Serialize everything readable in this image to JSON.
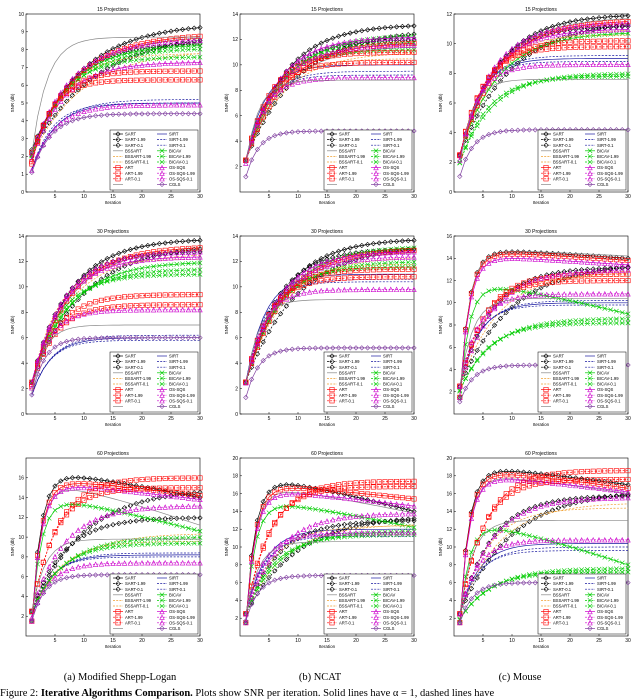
{
  "column_labels": [
    "(a) Modified Shepp-Logan",
    "(b) NCAT",
    "(c) Mouse"
  ],
  "caption": {
    "prefix": "Figure 2:",
    "bold": "Iterative Algorithms Comparison.",
    "rest": "Plots show SNR per iteration. Solid lines have α = 1, dashed lines have"
  },
  "legend_entries": [
    "SART",
    "SIRT",
    "SART-1.99",
    "SIRT-1.99",
    "SART-0.1",
    "SIRT-0.1",
    "BSSART",
    "BICAV",
    "BSSART-1.99",
    "BICAV-1.99",
    "BSSART-0.1",
    "BICAV-0.1",
    "ART",
    "OS-SQS",
    "ART-1.99",
    "OS-SQS-1.99",
    "ART-0.1",
    "OS-SQS-0.1",
    "",
    "CGLS"
  ],
  "series_styles": [
    {
      "color": "#000000",
      "marker": "diamond",
      "dash": false
    },
    {
      "color": "#1a1aa0",
      "marker": "none",
      "dash": false
    },
    {
      "color": "#000000",
      "marker": "diamond",
      "dash": true
    },
    {
      "color": "#1a1aa0",
      "marker": "none",
      "dash": true
    },
    {
      "color": "#000000",
      "marker": "diamond",
      "dash": true
    },
    {
      "color": "#1a1aa0",
      "marker": "none",
      "dash": true
    },
    {
      "color": "#888888",
      "marker": "none",
      "dash": false
    },
    {
      "color": "#00cc00",
      "marker": "x",
      "dash": false
    },
    {
      "color": "#f0a030",
      "marker": "none",
      "dash": true
    },
    {
      "color": "#00cc00",
      "marker": "x",
      "dash": true
    },
    {
      "color": "#f0a030",
      "marker": "none",
      "dash": true
    },
    {
      "color": "#00cc00",
      "marker": "x",
      "dash": true
    },
    {
      "color": "#ff0000",
      "marker": "square",
      "dash": false
    },
    {
      "color": "#cc00cc",
      "marker": "triangle",
      "dash": false
    },
    {
      "color": "#ff0000",
      "marker": "square",
      "dash": true
    },
    {
      "color": "#cc00cc",
      "marker": "triangle",
      "dash": true
    },
    {
      "color": "#ff0000",
      "marker": "square",
      "dash": true
    },
    {
      "color": "#cc00cc",
      "marker": "triangle",
      "dash": true
    },
    {
      "color": "#888888",
      "marker": "none",
      "dash": false
    },
    {
      "color": "#8040a0",
      "marker": "diamond",
      "dash": false
    }
  ],
  "chart_data": [
    {
      "type": "line",
      "title": "15 Projections",
      "xlabel": "Iteration",
      "ylabel": "SNR (db)",
      "xlim": [
        0,
        30
      ],
      "ylim": [
        0,
        10
      ],
      "xticks": [
        5,
        10,
        15,
        20,
        25,
        30
      ],
      "yticks": [
        0,
        1,
        2,
        3,
        4,
        5,
        6,
        7,
        8,
        9,
        10
      ],
      "finals": [
        9.5,
        5.0,
        9.0,
        5.2,
        8.4,
        5.0,
        8.8,
        8.3,
        8.0,
        8.1,
        7.8,
        7.6,
        8.9,
        7.3,
        6.8,
        8.6,
        6.3,
        4.9,
        8.7,
        4.4
      ],
      "peaks": [
        0,
        0,
        0,
        0,
        0,
        0,
        0,
        0,
        0,
        0,
        0,
        0,
        0,
        0,
        0,
        0,
        0,
        0,
        0,
        0
      ],
      "rates": [
        4,
        1.8,
        5,
        2,
        3,
        1.6,
        3.5,
        3,
        4,
        3,
        2.5,
        2.4,
        3.5,
        2.5,
        1.8,
        3,
        1.5,
        1.8,
        1.2,
        1.5
      ]
    },
    {
      "type": "line",
      "title": "15 Projections",
      "xlabel": "Iteration",
      "ylabel": "SNR (db)",
      "xlim": [
        0,
        30
      ],
      "ylim": [
        0,
        14
      ],
      "xticks": [
        5,
        10,
        15,
        20,
        25,
        30
      ],
      "yticks": [
        2,
        4,
        6,
        8,
        10,
        12,
        14
      ],
      "finals": [
        13.2,
        10.0,
        12.8,
        9.5,
        12.0,
        9.2,
        11.5,
        12.4,
        11.0,
        11.8,
        10.5,
        11.2,
        11.8,
        12.2,
        11.0,
        11.6,
        10.2,
        9.0,
        8.8,
        4.8
      ],
      "peaks": [
        0,
        0,
        0,
        0,
        0,
        0,
        0,
        0,
        0,
        0,
        0,
        0,
        0,
        0,
        0,
        0,
        0,
        0,
        0,
        0
      ],
      "rates": [
        3,
        1.5,
        4,
        1.6,
        2.5,
        1.4,
        3,
        3,
        3,
        2.6,
        2.2,
        2.2,
        3,
        2.5,
        2,
        2.5,
        1.8,
        1.4,
        1,
        1
      ]
    },
    {
      "type": "line",
      "title": "15 Projections",
      "xlabel": "Iteration",
      "ylabel": "SNR (db)",
      "xlim": [
        0,
        30
      ],
      "ylim": [
        0,
        12
      ],
      "xticks": [
        5,
        10,
        15,
        20,
        25,
        30
      ],
      "yticks": [
        0,
        2,
        4,
        6,
        8,
        10,
        12
      ],
      "finals": [
        12.0,
        9.0,
        11.6,
        9.2,
        11.2,
        8.8,
        11.8,
        10.8,
        11.0,
        8.0,
        10.6,
        7.8,
        11.6,
        11.0,
        10.2,
        11.4,
        9.8,
        8.6,
        7.6,
        4.2
      ],
      "peaks": [
        0,
        0,
        0,
        0,
        0,
        0,
        0,
        0,
        0,
        0,
        0,
        0,
        0,
        0,
        0,
        0,
        0,
        0,
        0,
        0
      ],
      "rates": [
        3,
        1.5,
        4,
        1.6,
        2.5,
        1.4,
        3,
        3,
        3,
        2.6,
        2.2,
        2.2,
        3,
        2.5,
        2,
        2.5,
        1.8,
        1.4,
        1,
        1
      ]
    },
    {
      "type": "line",
      "title": "30 Projections",
      "xlabel": "Iteration",
      "ylabel": "SNR (db)",
      "xlim": [
        0,
        30
      ],
      "ylim": [
        0,
        14
      ],
      "xticks": [
        5,
        10,
        15,
        20,
        25,
        30
      ],
      "yticks": [
        0,
        2,
        4,
        6,
        8,
        10,
        12,
        14
      ],
      "finals": [
        13.8,
        6.0,
        13.4,
        6.2,
        12.8,
        5.8,
        13.0,
        12.0,
        12.6,
        11.4,
        12.2,
        11.0,
        13.2,
        12.4,
        9.4,
        12.8,
        8.6,
        8.2,
        7.0,
        6.0
      ],
      "peaks": [
        0,
        0,
        0,
        0,
        0,
        0,
        0,
        0,
        0,
        0,
        0,
        0,
        0,
        0,
        0,
        0,
        0,
        0,
        0,
        0
      ],
      "rates": [
        3,
        1.5,
        4,
        1.6,
        2.5,
        1.4,
        3,
        3,
        3,
        2.6,
        2.2,
        2.2,
        3,
        2.5,
        2,
        2.5,
        1.8,
        1.4,
        1,
        1
      ]
    },
    {
      "type": "line",
      "title": "30 Projections",
      "xlabel": "Iteration",
      "ylabel": "SNR (db)",
      "xlim": [
        0,
        30
      ],
      "ylim": [
        0,
        14
      ],
      "xticks": [
        5,
        10,
        15,
        20,
        25,
        30
      ],
      "yticks": [
        0,
        2,
        4,
        6,
        8,
        10,
        12,
        14
      ],
      "finals": [
        13.8,
        11.0,
        13.4,
        10.6,
        13.0,
        10.4,
        12.8,
        13.2,
        12.4,
        12.0,
        11.8,
        11.6,
        13.0,
        12.8,
        11.4,
        12.4,
        10.8,
        9.8,
        9.0,
        5.2
      ],
      "peaks": [
        0,
        0,
        0,
        0,
        0,
        0,
        0,
        0,
        0,
        0,
        0,
        0,
        0,
        0,
        0,
        0,
        0,
        0,
        0,
        0
      ],
      "rates": [
        3,
        1.5,
        4,
        1.6,
        2.5,
        1.4,
        3,
        3,
        3,
        2.6,
        2.2,
        2.2,
        3,
        2.5,
        2,
        2.5,
        1.8,
        1.4,
        1,
        1
      ]
    },
    {
      "type": "line",
      "title": "30 Projections",
      "xlabel": "Iteration",
      "ylabel": "SNR (db)",
      "xlim": [
        0,
        30
      ],
      "ylim": [
        0,
        16
      ],
      "xticks": [
        5,
        10,
        15,
        20,
        25,
        30
      ],
      "yticks": [
        2,
        4,
        6,
        8,
        10,
        12,
        14,
        16
      ],
      "finals": [
        14.0,
        10.0,
        13.6,
        10.2,
        13.2,
        9.8,
        14.2,
        9.0,
        12.8,
        8.6,
        12.4,
        8.2,
        13.8,
        13.4,
        12.6,
        13.0,
        12.0,
        10.8,
        10.4,
        4.4
      ],
      "peaks": [
        14.8,
        0,
        0,
        0,
        0,
        0,
        14.8,
        11.8,
        0,
        0,
        0,
        0,
        14.6,
        14.2,
        0,
        0,
        0,
        0,
        0,
        0
      ],
      "rates": [
        3,
        1.5,
        4,
        1.6,
        2.5,
        1.4,
        3,
        3,
        3,
        2.6,
        2.2,
        2.2,
        3,
        2.5,
        2,
        2.5,
        1.8,
        1.4,
        1,
        1
      ]
    },
    {
      "type": "line",
      "title": "60 Projections",
      "xlabel": "Iteration",
      "ylabel": "SNR (db)",
      "xlim": [
        0,
        30
      ],
      "ylim": [
        0,
        18
      ],
      "xticks": [
        5,
        10,
        15,
        20,
        25,
        30
      ],
      "yticks": [
        2,
        4,
        6,
        8,
        10,
        12,
        14,
        16
      ],
      "finals": [
        14.0,
        8.2,
        15.0,
        8.4,
        12.0,
        8.0,
        11.2,
        10.6,
        10.4,
        10.0,
        9.6,
        9.4,
        14.2,
        13.8,
        16.0,
        13.2,
        15.0,
        7.4,
        9.8,
        6.2
      ],
      "peaks": [
        16.6,
        0,
        0,
        0,
        0,
        0,
        15.6,
        14.0,
        0,
        0,
        0,
        0,
        15.8,
        15.4,
        0,
        0,
        0,
        0,
        0,
        0
      ],
      "rates": [
        3,
        1.5,
        4,
        1.6,
        2.5,
        1.4,
        3,
        3,
        3,
        2.6,
        2.2,
        2.2,
        3,
        2.5,
        2,
        2.5,
        1.8,
        1.4,
        1,
        1
      ]
    },
    {
      "type": "line",
      "title": "60 Projections",
      "xlabel": "Iteration",
      "ylabel": "SNR (db)",
      "xlim": [
        0,
        30
      ],
      "ylim": [
        0,
        20
      ],
      "xticks": [
        5,
        10,
        15,
        20,
        25,
        30
      ],
      "yticks": [
        2,
        4,
        6,
        8,
        10,
        12,
        14,
        16,
        18,
        20
      ],
      "finals": [
        14.0,
        12.0,
        13.6,
        11.6,
        13.0,
        11.2,
        13.8,
        12.2,
        12.6,
        11.8,
        12.4,
        11.4,
        15.4,
        14.6,
        17.4,
        13.8,
        16.8,
        11.6,
        10.6,
        6.8
      ],
      "peaks": [
        17.8,
        0,
        0,
        0,
        0,
        0,
        16.8,
        15.2,
        0,
        0,
        0,
        0,
        17.0,
        16.4,
        0,
        0,
        0,
        0,
        0,
        0
      ],
      "rates": [
        3,
        1.5,
        4,
        1.6,
        2.5,
        1.4,
        3,
        3,
        3,
        2.6,
        2.2,
        2.2,
        3,
        2.5,
        2,
        2.5,
        1.8,
        1.4,
        1,
        1
      ]
    },
    {
      "type": "line",
      "title": "60 Projections",
      "xlabel": "Iteration",
      "ylabel": "SNR (db)",
      "xlim": [
        0,
        30
      ],
      "ylim": [
        0,
        20
      ],
      "xticks": [
        5,
        10,
        15,
        20,
        25,
        30
      ],
      "yticks": [
        2,
        4,
        6,
        8,
        10,
        12,
        14,
        16,
        18,
        20
      ],
      "finals": [
        17.0,
        10.4,
        16.4,
        10.0,
        15.8,
        9.6,
        16.0,
        8.0,
        15.0,
        7.6,
        14.4,
        7.2,
        16.6,
        16.2,
        18.6,
        15.6,
        17.6,
        10.8,
        13.0,
        6.0
      ],
      "peaks": [
        19.0,
        0,
        0,
        0,
        0,
        0,
        18.2,
        12.8,
        0,
        0,
        0,
        0,
        18.6,
        18.0,
        0,
        0,
        0,
        0,
        0,
        0
      ],
      "rates": [
        3,
        1.5,
        4,
        1.6,
        2.5,
        1.4,
        3,
        3,
        3,
        2.6,
        2.2,
        2.2,
        3,
        2.5,
        2,
        2.5,
        1.8,
        1.4,
        1,
        1
      ]
    }
  ]
}
